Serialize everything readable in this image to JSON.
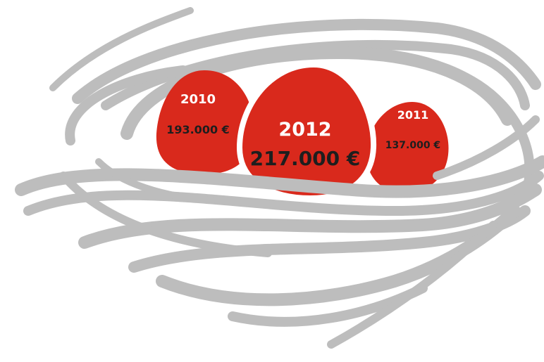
{
  "eggs": [
    {
      "year": "2010",
      "amount": "193.000 €"
    },
    {
      "year": "2012",
      "amount": "217.000 €"
    },
    {
      "year": "2011",
      "amount": "137.000 €"
    }
  ]
}
